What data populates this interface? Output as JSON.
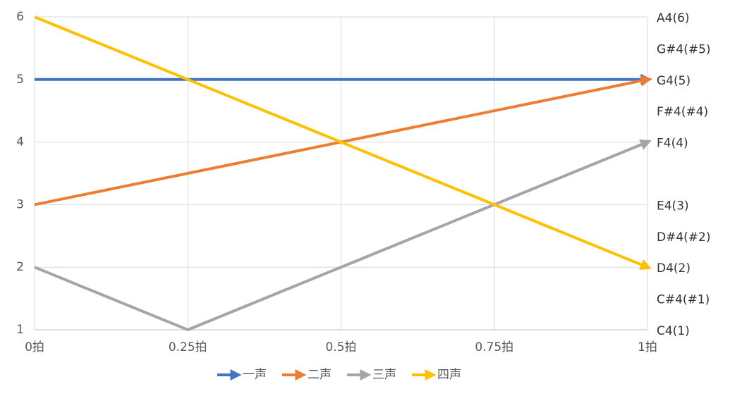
{
  "chart_data": {
    "type": "line",
    "x": [
      0,
      0.25,
      0.5,
      0.75,
      1
    ],
    "xlim": [
      0,
      1
    ],
    "xticks": [
      {
        "value": 0,
        "label": "0拍"
      },
      {
        "value": 0.25,
        "label": "0.25拍"
      },
      {
        "value": 0.5,
        "label": "0.5拍"
      },
      {
        "value": 0.75,
        "label": "0.75拍"
      },
      {
        "value": 1,
        "label": "1拍"
      }
    ],
    "ylim": [
      1,
      6
    ],
    "yticks": [
      1,
      2,
      3,
      4,
      5,
      6
    ],
    "y2lim": [
      1,
      6
    ],
    "y2ticks": [
      {
        "value": 1,
        "label": "C4(1)"
      },
      {
        "value": 1.5,
        "label": "C#4(#1)"
      },
      {
        "value": 2,
        "label": "D4(2)"
      },
      {
        "value": 2.5,
        "label": "D#4(#2)"
      },
      {
        "value": 3,
        "label": "E4(3)"
      },
      {
        "value": 4,
        "label": "F4(4)"
      },
      {
        "value": 4.5,
        "label": "F#4(#4)"
      },
      {
        "value": 5,
        "label": "G4(5)"
      },
      {
        "value": 5.5,
        "label": "G#4(#5)"
      },
      {
        "value": 6,
        "label": "A4(6)"
      }
    ],
    "grid": true,
    "legend": "bottom",
    "series": [
      {
        "name": "一声",
        "color": "#4472c4",
        "values": [
          5,
          5,
          5,
          5,
          5
        ]
      },
      {
        "name": "二声",
        "color": "#ed7d31",
        "values": [
          3,
          3.5,
          4,
          4.5,
          5
        ]
      },
      {
        "name": "三声",
        "color": "#a5a5a5",
        "values": [
          2,
          1,
          2,
          3,
          4
        ]
      },
      {
        "name": "四声",
        "color": "#ffc000",
        "values": [
          6,
          5,
          4,
          3,
          2
        ]
      }
    ]
  }
}
